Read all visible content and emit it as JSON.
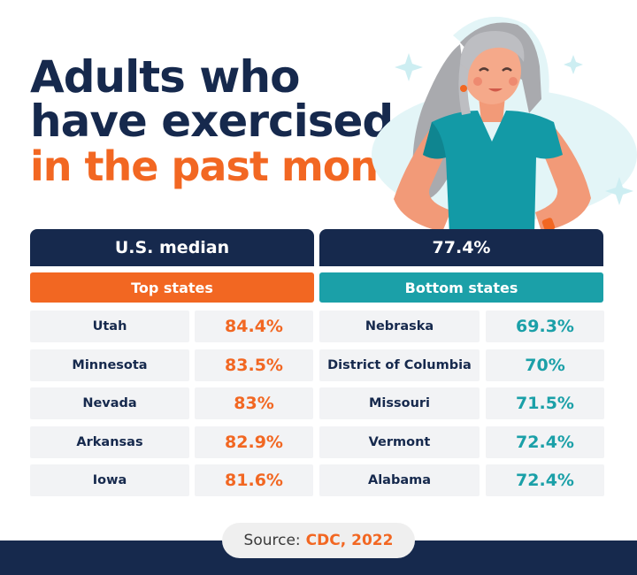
{
  "title": {
    "line1": "Adults who",
    "line2": "have exercised",
    "line3": "in the past month"
  },
  "summary": {
    "label": "U.S. median",
    "value": "77.4%"
  },
  "top": {
    "heading": "Top states",
    "rows": [
      {
        "state": "Utah",
        "value": "84.4%"
      },
      {
        "state": "Minnesota",
        "value": "83.5%"
      },
      {
        "state": "Nevada",
        "value": "83%"
      },
      {
        "state": "Arkansas",
        "value": "82.9%"
      },
      {
        "state": "Iowa",
        "value": "81.6%"
      }
    ]
  },
  "bottom": {
    "heading": "Bottom states",
    "rows": [
      {
        "state": "Nebraska",
        "value": "69.3%"
      },
      {
        "state": "District of Columbia",
        "value": "70%"
      },
      {
        "state": "Missouri",
        "value": "71.5%"
      },
      {
        "state": "Vermont",
        "value": "72.4%"
      },
      {
        "state": "Alabama",
        "value": "72.4%"
      }
    ]
  },
  "source": {
    "label": "Source:",
    "citation": "CDC, 2022"
  },
  "colors": {
    "navy": "#16294d",
    "orange": "#f26722",
    "teal": "#1ba0a8",
    "row_bg": "#f2f3f5"
  },
  "illustration": "woman-hands-on-hips"
}
